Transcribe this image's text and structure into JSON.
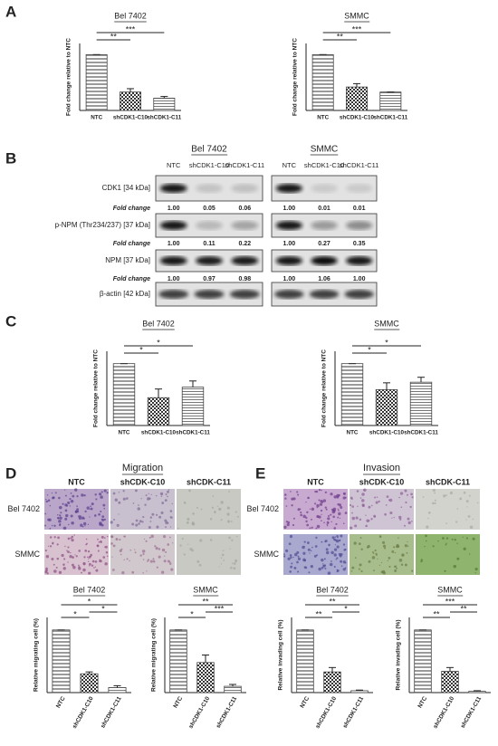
{
  "panels": [
    "A",
    "B",
    "C",
    "D",
    "E"
  ],
  "chart_data": [
    {
      "type": "bar",
      "title": "Bel 7402",
      "y_label": "Fold change relative to NTC",
      "categories": [
        "NTC",
        "shCDK1-C10",
        "shCDK1-C11"
      ],
      "values": [
        1,
        0.33,
        0.22
      ],
      "errors": [
        0,
        0.06,
        0.03
      ],
      "ylim": [
        0,
        1.2
      ],
      "annotations": [
        "***",
        "**"
      ],
      "color": "#444444"
    },
    {
      "type": "bar",
      "title": "SMMC",
      "y_label": "Fold change relative to NTC",
      "categories": [
        "NTC",
        "shCDK1-C10",
        "shCDK1-C11"
      ],
      "values": [
        1,
        0.42,
        0.33
      ],
      "errors": [
        0,
        0.06,
        0
      ],
      "ylim": [
        0,
        1.2
      ],
      "annotations": [
        "***",
        "**"
      ],
      "color": "#444444"
    },
    {
      "type": "bar",
      "title": "Bel 7402",
      "y_label": "Fold change relative to NTC",
      "categories": [
        "NTC",
        "shCDK1-C10",
        "shCDK1-C11"
      ],
      "values": [
        1,
        0.45,
        0.62
      ],
      "errors": [
        0,
        0.14,
        0.1
      ],
      "ylim": [
        0,
        1.2
      ],
      "annotations": [
        "*",
        "*"
      ],
      "color": "#444444"
    },
    {
      "type": "bar",
      "title": "SMMC",
      "y_label": "Fold change relative to NTC",
      "categories": [
        "NTC",
        "shCDK1-C10",
        "shCDK1-C11"
      ],
      "values": [
        1,
        0.58,
        0.7
      ],
      "errors": [
        0,
        0.11,
        0.08
      ],
      "ylim": [
        0,
        1.2
      ],
      "annotations": [
        "*",
        "*"
      ],
      "color": "#444444"
    },
    {
      "type": "bar",
      "title": "Bel 7402",
      "y_label": "Relative migrating cell (%)",
      "categories": [
        "NTC",
        "shCDK1-C10",
        "shCDK1-C11"
      ],
      "values": [
        100,
        30,
        8
      ],
      "errors": [
        0,
        3,
        3
      ],
      "ylim": [
        0,
        120
      ],
      "annotations": [
        "*",
        "*",
        "*"
      ],
      "color": "#444444"
    },
    {
      "type": "bar",
      "title": "SMMC",
      "y_label": "Relative migrating cell (%)",
      "categories": [
        "NTC",
        "shCDK1-C10",
        "shCDK1-C11"
      ],
      "values": [
        100,
        48,
        10
      ],
      "errors": [
        0,
        12,
        3
      ],
      "ylim": [
        0,
        120
      ],
      "annotations": [
        "**",
        "***",
        "*"
      ],
      "color": "#444444"
    },
    {
      "type": "bar",
      "title": "Bel 7402",
      "y_label": "Relative invading cell (%)",
      "categories": [
        "NTC",
        "shCDK1-C10",
        "shCDK1-C11"
      ],
      "values": [
        100,
        33,
        3
      ],
      "errors": [
        0,
        7,
        1
      ],
      "ylim": [
        0,
        120
      ],
      "annotations": [
        "**",
        "*",
        "**"
      ],
      "color": "#444444"
    },
    {
      "type": "bar",
      "title": "SMMC",
      "y_label": "Relative invading cell (%)",
      "categories": [
        "NTC",
        "shCDK1-C10",
        "shCDK1-C11"
      ],
      "values": [
        100,
        34,
        2
      ],
      "errors": [
        0,
        6,
        1
      ],
      "ylim": [
        0,
        120
      ],
      "annotations": [
        "***",
        "**",
        "**"
      ],
      "color": "#444444"
    }
  ],
  "blot": {
    "groups": [
      {
        "title": "Bel 7402",
        "lanes": [
          "NTC",
          "shCDK1-C10",
          "shCDK1-C11"
        ]
      },
      {
        "title": "SMMC",
        "lanes": [
          "NTC",
          "shCDK1-C10",
          "shCDK1-C11"
        ]
      }
    ],
    "fold_label": "Fold change",
    "rows": [
      {
        "label": "CDK1  [34 kDa]",
        "fold": [
          [
            1,
            0.05,
            0.06
          ],
          [
            1,
            0.01,
            0.01
          ]
        ],
        "fold_labels": [
          [
            "1.00",
            "0.05",
            "0.06"
          ],
          [
            "1.00",
            "0.01",
            "0.01"
          ]
        ]
      },
      {
        "label": "p-NPM (Thr234/237) [37 kDa]",
        "fold": [
          [
            1,
            0.11,
            0.22
          ],
          [
            1,
            0.27,
            0.35
          ]
        ],
        "fold_labels": [
          [
            "1.00",
            "0.11",
            "0.22"
          ],
          [
            "1.00",
            "0.27",
            "0.35"
          ]
        ]
      },
      {
        "label": "NPM [37 kDa]",
        "fold": [
          [
            1,
            0.97,
            0.98
          ],
          [
            1,
            1.06,
            1
          ]
        ],
        "fold_labels": [
          [
            "1.00",
            "0.97",
            "0.98"
          ],
          [
            "1.00",
            "1.06",
            "1.00"
          ]
        ]
      },
      {
        "label": "β-actin [42 kDa]"
      }
    ]
  },
  "microscopy": [
    {
      "title": "Migration",
      "columns": [
        "NTC",
        "shCDK-C10",
        "shCDK-C11"
      ],
      "rows": [
        "Bel 7402",
        "SMMC"
      ]
    },
    {
      "title": "Invasion",
      "columns": [
        "NTC",
        "shCDK-C10",
        "shCDK-C11"
      ],
      "rows": [
        "Bel 7402",
        "SMMC"
      ]
    }
  ]
}
